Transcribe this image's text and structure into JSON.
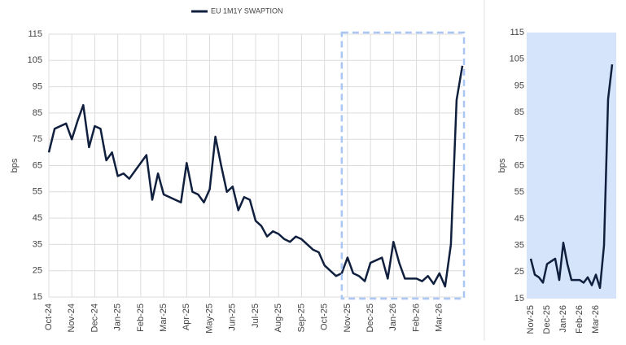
{
  "chart_data": [
    {
      "type": "line",
      "legend": "top",
      "series": [
        {
          "name": "EU 1M1Y SWAPTION",
          "color": "#0f1f3d",
          "values": [
            70,
            79,
            80,
            81,
            75,
            82,
            88,
            72,
            80,
            79,
            67,
            70,
            61,
            62,
            60,
            63,
            66,
            69,
            52,
            62,
            54,
            53,
            52,
            51,
            66,
            55,
            54,
            51,
            56,
            76,
            65,
            55,
            57,
            48,
            53,
            52,
            44,
            42,
            38,
            40,
            39,
            37,
            36,
            38,
            37,
            35,
            33,
            32,
            27,
            25,
            23,
            24,
            30,
            24,
            23,
            21,
            28,
            29,
            30,
            22,
            36,
            28,
            22,
            22,
            22,
            21,
            23,
            20,
            24,
            19,
            35,
            90,
            103
          ]
        }
      ],
      "categories": [
        "Oct-24",
        null,
        null,
        null,
        "Nov-24",
        null,
        null,
        null,
        "Dec-24",
        null,
        null,
        null,
        "Jan-25",
        null,
        null,
        null,
        "Feb-25",
        null,
        null,
        null,
        "Mar-25",
        null,
        null,
        null,
        "Apr-25",
        null,
        null,
        null,
        "May-25",
        null,
        null,
        null,
        "Jun-25",
        null,
        null,
        null,
        "Jul-25",
        null,
        null,
        null,
        "Aug-25",
        null,
        null,
        null,
        "Sep-25",
        null,
        null,
        null,
        "Oct-25",
        null,
        null,
        null,
        "Nov-25",
        null,
        null,
        null,
        "Dec-25",
        null,
        null,
        null,
        "Jan-26",
        null,
        null,
        null,
        "Feb-26",
        null,
        null,
        null,
        "Mar-26",
        null,
        null,
        null,
        null
      ],
      "y_label": "bps",
      "ylim": [
        15,
        115
      ],
      "yticks": [
        15,
        25,
        35,
        45,
        55,
        65,
        75,
        85,
        95,
        105,
        115
      ],
      "grid": true
    },
    {
      "type": "line",
      "background": "#d6e4fb",
      "series": [
        {
          "name": "EU 1M1Y SWAPTION",
          "color": "#0f1f3d",
          "values": [
            30,
            24,
            23,
            21,
            28,
            29,
            30,
            22,
            36,
            28,
            22,
            22,
            22,
            21,
            23,
            20,
            24,
            19,
            35,
            90,
            103
          ]
        }
      ],
      "categories": [
        "Nov-25",
        null,
        null,
        null,
        "Dec-25",
        null,
        null,
        null,
        "Jan-26",
        null,
        null,
        null,
        "Feb-26",
        null,
        null,
        null,
        "Mar-26",
        null,
        null,
        null,
        null
      ],
      "y_label": "bps",
      "ylim": [
        15,
        115
      ],
      "yticks": [
        15,
        25,
        35,
        45,
        55,
        65,
        75,
        85,
        95,
        105,
        115
      ],
      "grid": false
    }
  ]
}
